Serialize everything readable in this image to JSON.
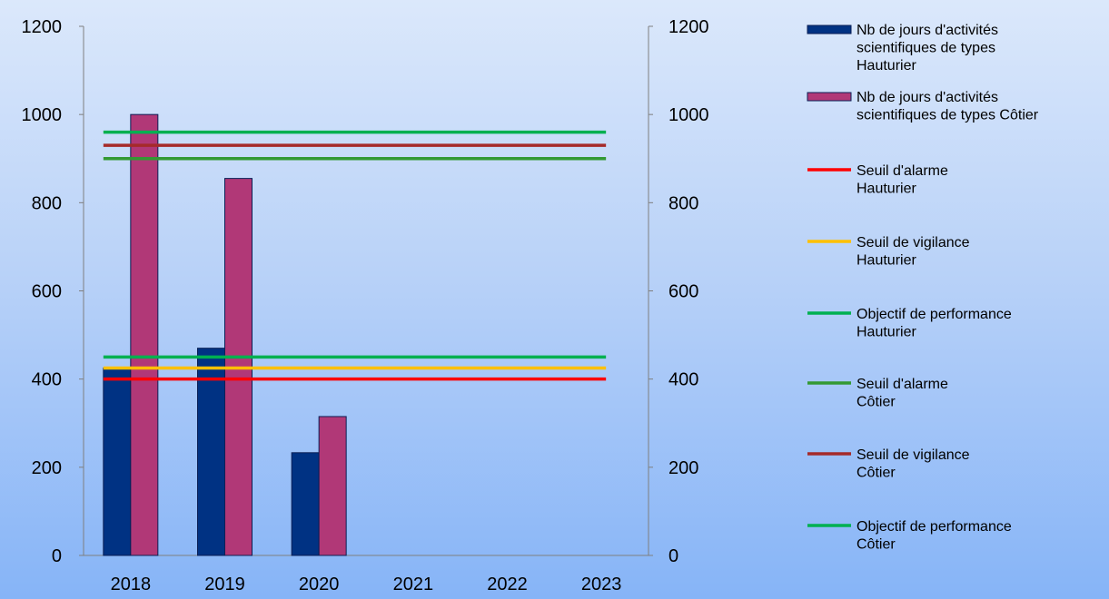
{
  "chart_data": {
    "type": "bar",
    "categories": [
      "2018",
      "2019",
      "2020",
      "2021",
      "2022",
      "2023"
    ],
    "ylim": [
      0,
      1200
    ],
    "y_ticks": [
      0,
      200,
      400,
      600,
      800,
      1000,
      1200
    ],
    "y2_ticks": [
      0,
      200,
      400,
      600,
      800,
      1000,
      1200
    ],
    "grid": false,
    "legend_position": "right",
    "bar_series": [
      {
        "name": "Nb de jours d'activités scientifiques de types Hauturier",
        "name_lines": [
          "Nb de jours d'activités",
          "scientifiques de types",
          "Hauturier"
        ],
        "color": "#003283",
        "values": [
          425,
          470,
          233,
          null,
          null,
          null
        ]
      },
      {
        "name": "Nb de jours d'activités scientifiques de types Côtier",
        "name_lines": [
          "Nb de jours d'activités",
          "scientifiques de types Côtier"
        ],
        "color": "#b13877",
        "values": [
          1000,
          855,
          315,
          null,
          null,
          null
        ]
      }
    ],
    "line_series": [
      {
        "name": "Seuil d'alarme Hauturier",
        "name_lines": [
          "Seuil d'alarme",
          "Hauturier"
        ],
        "color": "#ff0000",
        "value": 400
      },
      {
        "name": "Seuil de vigilance Hauturier",
        "name_lines": [
          "Seuil de vigilance",
          "Hauturier"
        ],
        "color": "#ffc000",
        "value": 425
      },
      {
        "name": "Objectif de performance Hauturier",
        "name_lines": [
          "Objectif de performance",
          "Hauturier"
        ],
        "color": "#00b050",
        "value": 450
      },
      {
        "name": "Seuil d'alarme Côtier",
        "name_lines": [
          "Seuil d'alarme",
          "Côtier"
        ],
        "color": "#339933",
        "value": 900
      },
      {
        "name": "Seuil de vigilance Côtier",
        "name_lines": [
          "Seuil de vigilance",
          "Côtier"
        ],
        "color": "#a52a2a",
        "value": 930
      },
      {
        "name": "Objectif de performance Côtier",
        "name_lines": [
          "Objectif de performance",
          "Côtier"
        ],
        "color": "#00b050",
        "value": 960
      }
    ]
  }
}
